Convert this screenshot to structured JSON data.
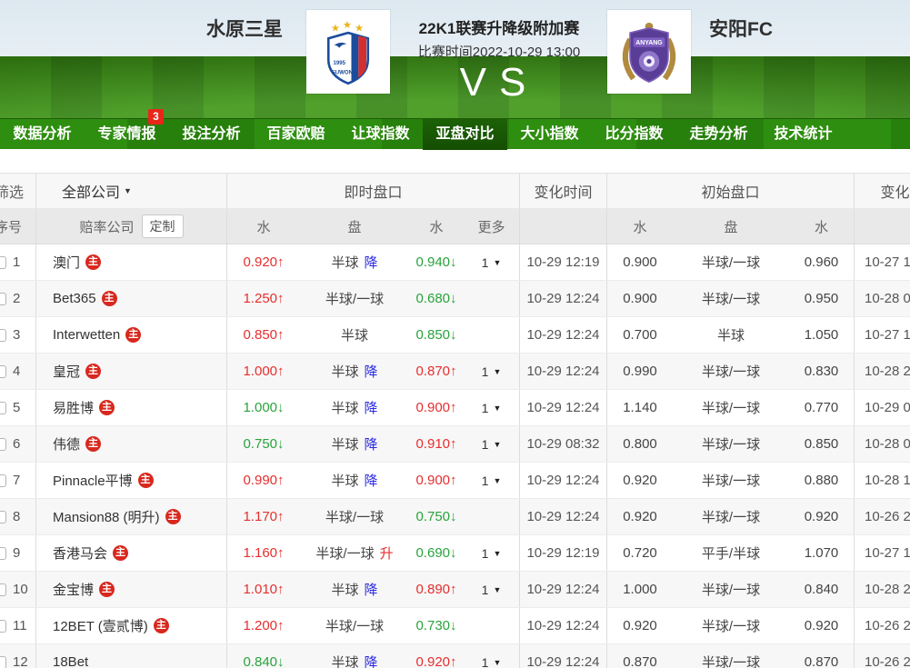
{
  "header": {
    "home_team": "水原三星",
    "away_team": "安阳FC",
    "league": "22K1联赛升降级附加赛",
    "match_time": "比赛时间2022-10-29 13:00",
    "vs": "VS"
  },
  "nav": {
    "items": [
      {
        "label": "数据分析",
        "active": false
      },
      {
        "label": "专家情报",
        "active": false,
        "badge": "3"
      },
      {
        "label": "投注分析",
        "active": false
      },
      {
        "label": "百家欧赔",
        "active": false
      },
      {
        "label": "让球指数",
        "active": false
      },
      {
        "label": "亚盘对比",
        "active": true
      },
      {
        "label": "大小指数",
        "active": false
      },
      {
        "label": "比分指数",
        "active": false
      },
      {
        "label": "走势分析",
        "active": false
      },
      {
        "label": "技术统计",
        "active": false
      }
    ]
  },
  "icons": {
    "arrow_up": "↑",
    "arrow_down": "↓",
    "caret_down": "▼",
    "main_badge": "主"
  },
  "colors": {
    "up_red": "#e62e2e",
    "down_green": "#28a33c",
    "trend_blue": "#2a2ae0",
    "nav_green": "#2e8e10",
    "nav_active_green": "#154e02",
    "badge_red": "#e8261a"
  },
  "table": {
    "filter_label": "筛选",
    "seq_label": "序号",
    "company_filter": "全部公司",
    "company_label": "赔率公司",
    "customize_label": "定制",
    "group_live": "即时盘口",
    "group_change_time": "变化时间",
    "group_initial": "初始盘口",
    "group_change_time2": "变化时间",
    "sub_water": "水",
    "sub_handicap": "盘",
    "sub_more": "更多",
    "rows": [
      {
        "num": "1",
        "company": "澳门",
        "main": true,
        "live_w1": "0.920",
        "live_w1_dir": "up",
        "live_hcp": "半球",
        "live_trend": "降",
        "live_w2": "0.940",
        "live_w2_dir": "down",
        "more": "1",
        "change_time": "10-29 12:19",
        "init_w1": "0.900",
        "init_hcp": "半球/一球",
        "init_w2": "0.960",
        "change_time2": "10-27 1"
      },
      {
        "num": "2",
        "company": "Bet365",
        "main": true,
        "live_w1": "1.250",
        "live_w1_dir": "up",
        "live_hcp": "半球/一球",
        "live_trend": "",
        "live_w2": "0.680",
        "live_w2_dir": "down",
        "more": "",
        "change_time": "10-29 12:24",
        "init_w1": "0.900",
        "init_hcp": "半球/一球",
        "init_w2": "0.950",
        "change_time2": "10-28 0"
      },
      {
        "num": "3",
        "company": "Interwetten",
        "main": true,
        "live_w1": "0.850",
        "live_w1_dir": "up",
        "live_hcp": "半球",
        "live_trend": "",
        "live_w2": "0.850",
        "live_w2_dir": "down",
        "more": "",
        "change_time": "10-29 12:24",
        "init_w1": "0.700",
        "init_hcp": "半球",
        "init_w2": "1.050",
        "change_time2": "10-27 1"
      },
      {
        "num": "4",
        "company": "皇冠",
        "main": true,
        "live_w1": "1.000",
        "live_w1_dir": "up",
        "live_hcp": "半球",
        "live_trend": "降",
        "live_w2": "0.870",
        "live_w2_dir": "up",
        "more": "1",
        "change_time": "10-29 12:24",
        "init_w1": "0.990",
        "init_hcp": "半球/一球",
        "init_w2": "0.830",
        "change_time2": "10-28 2"
      },
      {
        "num": "5",
        "company": "易胜博",
        "main": true,
        "live_w1": "1.000",
        "live_w1_dir": "down",
        "live_hcp": "半球",
        "live_trend": "降",
        "live_w2": "0.900",
        "live_w2_dir": "up",
        "more": "1",
        "change_time": "10-29 12:24",
        "init_w1": "1.140",
        "init_hcp": "半球/一球",
        "init_w2": "0.770",
        "change_time2": "10-29 0"
      },
      {
        "num": "6",
        "company": "伟德",
        "main": true,
        "live_w1": "0.750",
        "live_w1_dir": "down",
        "live_hcp": "半球",
        "live_trend": "降",
        "live_w2": "0.910",
        "live_w2_dir": "up",
        "more": "1",
        "change_time": "10-29 08:32",
        "init_w1": "0.800",
        "init_hcp": "半球/一球",
        "init_w2": "0.850",
        "change_time2": "10-28 0"
      },
      {
        "num": "7",
        "company": "Pinnacle平博",
        "main": true,
        "live_w1": "0.990",
        "live_w1_dir": "up",
        "live_hcp": "半球",
        "live_trend": "降",
        "live_w2": "0.900",
        "live_w2_dir": "up",
        "more": "1",
        "change_time": "10-29 12:24",
        "init_w1": "0.920",
        "init_hcp": "半球/一球",
        "init_w2": "0.880",
        "change_time2": "10-28 1"
      },
      {
        "num": "8",
        "company": "Mansion88 (明升)",
        "main": true,
        "live_w1": "1.170",
        "live_w1_dir": "up",
        "live_hcp": "半球/一球",
        "live_trend": "",
        "live_w2": "0.750",
        "live_w2_dir": "down",
        "more": "",
        "change_time": "10-29 12:24",
        "init_w1": "0.920",
        "init_hcp": "半球/一球",
        "init_w2": "0.920",
        "change_time2": "10-26 2"
      },
      {
        "num": "9",
        "company": "香港马会",
        "main": true,
        "live_w1": "1.160",
        "live_w1_dir": "up",
        "live_hcp": "半球/一球",
        "live_trend": "升",
        "live_w2": "0.690",
        "live_w2_dir": "down",
        "more": "1",
        "change_time": "10-29 12:19",
        "init_w1": "0.720",
        "init_hcp": "平手/半球",
        "init_w2": "1.070",
        "change_time2": "10-27 1"
      },
      {
        "num": "10",
        "company": "金宝博",
        "main": true,
        "live_w1": "1.010",
        "live_w1_dir": "up",
        "live_hcp": "半球",
        "live_trend": "降",
        "live_w2": "0.890",
        "live_w2_dir": "up",
        "more": "1",
        "change_time": "10-29 12:24",
        "init_w1": "1.000",
        "init_hcp": "半球/一球",
        "init_w2": "0.840",
        "change_time2": "10-28 2"
      },
      {
        "num": "11",
        "company": "12BET (壹贰博)",
        "main": true,
        "live_w1": "1.200",
        "live_w1_dir": "up",
        "live_hcp": "半球/一球",
        "live_trend": "",
        "live_w2": "0.730",
        "live_w2_dir": "down",
        "more": "",
        "change_time": "10-29 12:24",
        "init_w1": "0.920",
        "init_hcp": "半球/一球",
        "init_w2": "0.920",
        "change_time2": "10-26 2"
      },
      {
        "num": "12",
        "company": "18Bet",
        "main": false,
        "live_w1": "0.840",
        "live_w1_dir": "down",
        "live_hcp": "半球",
        "live_trend": "降",
        "live_w2": "0.920",
        "live_w2_dir": "up",
        "more": "1",
        "change_time": "10-29 12:24",
        "init_w1": "0.870",
        "init_hcp": "半球/一球",
        "init_w2": "0.870",
        "change_time2": "10-26 2"
      }
    ]
  }
}
